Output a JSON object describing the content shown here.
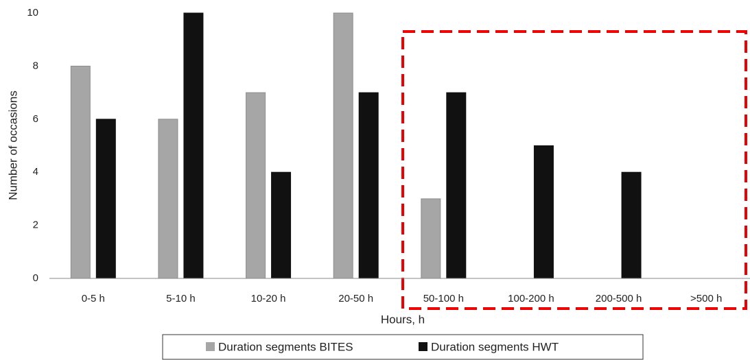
{
  "chart_data": {
    "type": "bar",
    "x_label": "Hours, h",
    "y_label": "Number of occasions",
    "categories": [
      "0-5 h",
      "5-10 h",
      "10-20 h",
      "20-50 h",
      "50-100 h",
      "100-200 h",
      "200-500 h",
      ">500 h"
    ],
    "series": [
      {
        "name": "Duration segments BITES",
        "color": "#a6a6a6",
        "values": [
          8,
          6,
          7,
          10,
          3,
          0,
          0,
          0
        ]
      },
      {
        "name": "Duration segments HWT",
        "color": "#111111",
        "values": [
          6,
          10,
          4,
          7,
          7,
          5,
          4,
          0
        ]
      }
    ],
    "ylim": [
      0,
      10
    ],
    "yticks": [
      0,
      2,
      4,
      6,
      8,
      10
    ],
    "grid": false,
    "legend": "bottom"
  }
}
